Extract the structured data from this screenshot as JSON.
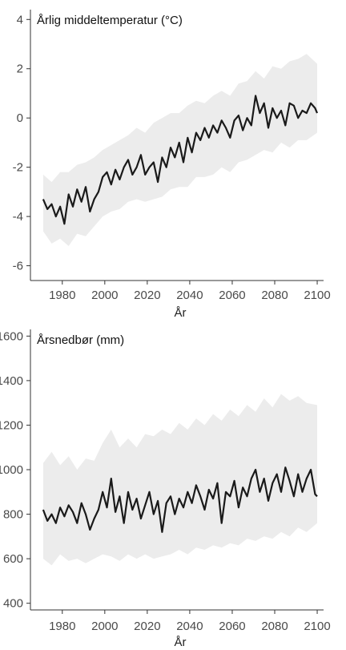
{
  "chart_data": [
    {
      "type": "line",
      "title": "Årlig middeltemperatur (°C)",
      "xlabel": "År",
      "ylabel": "",
      "xlim": [
        1965,
        2103
      ],
      "ylim": [
        -6.6,
        4.4
      ],
      "xticks": [
        1980,
        2000,
        2020,
        2040,
        2060,
        2080,
        2100
      ],
      "yticks": [
        -6,
        -4,
        -2,
        0,
        2,
        4
      ],
      "grid": false,
      "series": [
        {
          "name": "",
          "color": "#1a1a1a",
          "x": [
            1971,
            1973,
            1975,
            1977,
            1979,
            1981,
            1983,
            1985,
            1987,
            1989,
            1991,
            1993,
            1995,
            1997,
            1999,
            2001,
            2003,
            2005,
            2007,
            2009,
            2011,
            2013,
            2015,
            2017,
            2019,
            2021,
            2023,
            2025,
            2027,
            2029,
            2031,
            2033,
            2035,
            2037,
            2039,
            2041,
            2043,
            2045,
            2047,
            2049,
            2051,
            2053,
            2055,
            2057,
            2059,
            2061,
            2063,
            2065,
            2067,
            2069,
            2071,
            2073,
            2075,
            2077,
            2079,
            2081,
            2083,
            2085,
            2087,
            2089,
            2091,
            2093,
            2095,
            2097,
            2099,
            2100
          ],
          "values": [
            -3.3,
            -3.7,
            -3.5,
            -4.0,
            -3.6,
            -4.3,
            -3.1,
            -3.6,
            -2.9,
            -3.4,
            -2.8,
            -3.8,
            -3.3,
            -3.0,
            -2.4,
            -2.2,
            -2.7,
            -2.1,
            -2.5,
            -2.0,
            -1.7,
            -2.3,
            -2.0,
            -1.5,
            -2.3,
            -2.0,
            -1.8,
            -2.6,
            -1.6,
            -2.0,
            -1.2,
            -1.6,
            -1.0,
            -1.8,
            -0.8,
            -1.4,
            -0.6,
            -0.9,
            -0.4,
            -0.8,
            -0.3,
            -0.6,
            -0.1,
            -0.4,
            -0.8,
            -0.1,
            0.1,
            -0.5,
            0.0,
            -0.3,
            0.9,
            0.2,
            0.6,
            -0.4,
            0.4,
            0.0,
            0.3,
            -0.3,
            0.6,
            0.5,
            0.0,
            0.3,
            0.2,
            0.6,
            0.4,
            0.2
          ]
        }
      ],
      "band": {
        "x": [
          1971,
          1975,
          1979,
          1983,
          1987,
          1991,
          1995,
          1999,
          2003,
          2007,
          2011,
          2015,
          2019,
          2023,
          2027,
          2031,
          2035,
          2039,
          2043,
          2047,
          2051,
          2055,
          2059,
          2063,
          2067,
          2071,
          2075,
          2079,
          2083,
          2087,
          2091,
          2095,
          2100
        ],
        "lower": [
          -4.6,
          -5.1,
          -4.9,
          -5.2,
          -4.7,
          -4.8,
          -4.4,
          -4.0,
          -3.8,
          -3.7,
          -3.4,
          -3.3,
          -3.4,
          -3.3,
          -3.2,
          -2.9,
          -2.8,
          -2.8,
          -2.4,
          -2.4,
          -2.3,
          -2.0,
          -2.2,
          -1.8,
          -1.7,
          -1.5,
          -1.3,
          -1.4,
          -1.0,
          -1.2,
          -0.9,
          -0.9,
          -0.6
        ],
        "upper": [
          -2.3,
          -2.6,
          -2.2,
          -2.2,
          -1.9,
          -1.8,
          -1.6,
          -1.3,
          -1.1,
          -0.9,
          -0.7,
          -0.4,
          -0.6,
          -0.2,
          0.0,
          0.2,
          0.2,
          0.5,
          0.7,
          0.6,
          0.9,
          1.1,
          0.9,
          1.4,
          1.5,
          1.9,
          1.6,
          2.1,
          2.0,
          2.3,
          2.4,
          2.6,
          2.2
        ]
      },
      "band_color": "#ececec"
    },
    {
      "type": "line",
      "title": "Årsnedbør (mm)",
      "xlabel": "År",
      "ylabel": "",
      "xlim": [
        1965,
        2103
      ],
      "ylim": [
        370,
        1630
      ],
      "xticks": [
        1980,
        2000,
        2020,
        2040,
        2060,
        2080,
        2100
      ],
      "yticks": [
        400,
        600,
        800,
        1000,
        1200,
        1400,
        1600
      ],
      "grid": false,
      "series": [
        {
          "name": "",
          "color": "#1a1a1a",
          "x": [
            1971,
            1973,
            1975,
            1977,
            1979,
            1981,
            1983,
            1985,
            1987,
            1989,
            1991,
            1993,
            1995,
            1997,
            1999,
            2001,
            2003,
            2005,
            2007,
            2009,
            2011,
            2013,
            2015,
            2017,
            2019,
            2021,
            2023,
            2025,
            2027,
            2029,
            2031,
            2033,
            2035,
            2037,
            2039,
            2041,
            2043,
            2045,
            2047,
            2049,
            2051,
            2053,
            2055,
            2057,
            2059,
            2061,
            2063,
            2065,
            2067,
            2069,
            2071,
            2073,
            2075,
            2077,
            2079,
            2081,
            2083,
            2085,
            2087,
            2089,
            2091,
            2093,
            2095,
            2097,
            2099,
            2100
          ],
          "values": [
            820,
            770,
            800,
            760,
            830,
            790,
            840,
            810,
            760,
            850,
            800,
            730,
            780,
            820,
            900,
            830,
            960,
            810,
            880,
            760,
            900,
            820,
            870,
            780,
            840,
            900,
            800,
            860,
            720,
            850,
            880,
            800,
            870,
            830,
            900,
            850,
            930,
            880,
            820,
            910,
            870,
            940,
            760,
            900,
            880,
            950,
            830,
            920,
            880,
            960,
            1000,
            900,
            960,
            860,
            940,
            980,
            900,
            1010,
            950,
            880,
            980,
            900,
            960,
            1000,
            890,
            880
          ]
        }
      ],
      "band": {
        "x": [
          1971,
          1975,
          1979,
          1983,
          1987,
          1991,
          1995,
          1999,
          2003,
          2007,
          2011,
          2015,
          2019,
          2023,
          2027,
          2031,
          2035,
          2039,
          2043,
          2047,
          2051,
          2055,
          2059,
          2063,
          2067,
          2071,
          2075,
          2079,
          2083,
          2087,
          2091,
          2095,
          2100
        ],
        "lower": [
          600,
          570,
          620,
          590,
          600,
          580,
          600,
          620,
          610,
          590,
          620,
          600,
          620,
          600,
          610,
          620,
          640,
          620,
          650,
          640,
          660,
          650,
          670,
          660,
          690,
          680,
          700,
          690,
          720,
          700,
          740,
          720,
          760
        ],
        "upper": [
          1030,
          1080,
          1020,
          1060,
          1000,
          1050,
          1040,
          1120,
          1180,
          1100,
          1140,
          1100,
          1160,
          1150,
          1180,
          1160,
          1210,
          1180,
          1230,
          1200,
          1250,
          1220,
          1270,
          1240,
          1290,
          1260,
          1320,
          1280,
          1340,
          1310,
          1330,
          1300,
          1290
        ]
      },
      "band_color": "#ececec"
    }
  ]
}
